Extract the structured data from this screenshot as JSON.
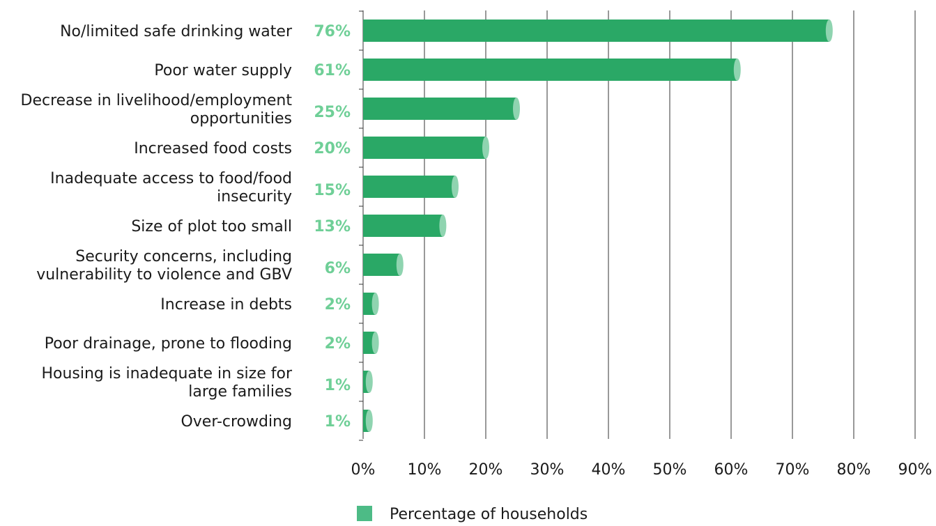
{
  "chart_data": {
    "type": "bar",
    "orientation": "horizontal",
    "categories": [
      [
        "No/limited safe drinking water"
      ],
      [
        "Poor water supply"
      ],
      [
        "Decrease in livelihood/employment",
        "opportunities"
      ],
      [
        "Increased food costs"
      ],
      [
        "Inadequate access to food/food",
        "insecurity"
      ],
      [
        "Size of plot too small"
      ],
      [
        "Security concerns, including",
        "vulnerability to violence and GBV"
      ],
      [
        "Increase in debts"
      ],
      [
        "Poor drainage, prone to flooding"
      ],
      [
        "Housing is inadequate in size for",
        "large families"
      ],
      [
        "Over-crowding"
      ]
    ],
    "values": [
      76,
      61,
      25,
      20,
      15,
      13,
      6,
      2,
      2,
      1,
      1
    ],
    "value_labels": [
      "76%",
      "61%",
      "25%",
      "20%",
      "15%",
      "13%",
      "6%",
      "2%",
      "2%",
      "1%",
      "1%"
    ],
    "xlim": [
      0,
      90
    ],
    "x_ticks": [
      0,
      10,
      20,
      30,
      40,
      50,
      60,
      70,
      80,
      90
    ],
    "x_tick_labels": [
      "0%",
      "10%",
      "20%",
      "30%",
      "40%",
      "50%",
      "60%",
      "70%",
      "80%",
      "90%"
    ],
    "grid": "vertical",
    "legend_position": "bottom",
    "series": [
      {
        "name": "Percentage of households",
        "values": [
          76,
          61,
          25,
          20,
          15,
          13,
          6,
          2,
          2,
          1,
          1
        ]
      }
    ],
    "colors": {
      "bar": "#2aa866",
      "bar_cap": "#8fd4b0",
      "value_label": "#6fcf97",
      "legend_swatch": "#4dbb86",
      "grid": "#333333"
    }
  }
}
